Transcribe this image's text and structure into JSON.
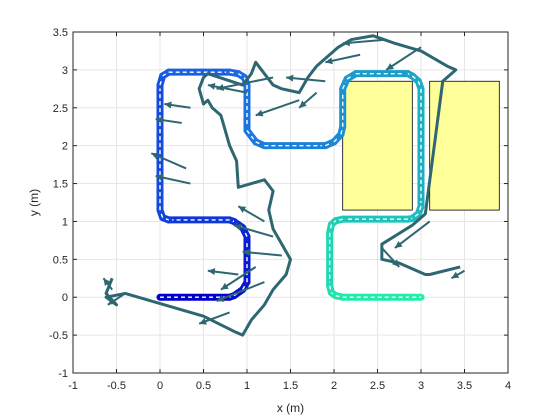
{
  "chart_data": {
    "type": "line",
    "xlabel": "x (m)",
    "ylabel": "y (m)",
    "xlim": [
      -1,
      4
    ],
    "ylim": [
      -1,
      3.5
    ],
    "x_ticks": [
      -1,
      -0.5,
      0,
      0.5,
      1,
      1.5,
      2,
      2.5,
      3,
      3.5,
      4
    ],
    "x_tick_labels": [
      "-1",
      "-0.5",
      "0",
      "0.5",
      "1",
      "1.5",
      "2",
      "2.5",
      "3",
      "3.5",
      "4"
    ],
    "y_ticks": [
      -1,
      -0.5,
      0,
      0.5,
      1,
      1.5,
      2,
      2.5,
      3,
      3.5
    ],
    "y_tick_labels": [
      "-1",
      "-0.5",
      "0",
      "0.5",
      "1",
      "1.5",
      "2",
      "2.5",
      "3",
      "3.5"
    ],
    "grid": true,
    "series": [
      {
        "style": "reference-path",
        "color_gradient": [
          "#0000cc",
          "#1a66e6",
          "#1aa6c6",
          "#22f0a8"
        ],
        "x": [
          0,
          0.8,
          0.85,
          0.95,
          1.0,
          1.0,
          0.95,
          0.85,
          0.8,
          0.1,
          0.03,
          0.0,
          0.0,
          0.03,
          0.1,
          0.8,
          0.9,
          0.97,
          1.0,
          1.0,
          1.1,
          1.2,
          1.9,
          2.0,
          2.08,
          2.1,
          2.1,
          2.15,
          2.25,
          2.85,
          2.9,
          2.97,
          3.0,
          3.0,
          2.97,
          2.9,
          2.85,
          2.1,
          2.02,
          1.97,
          1.95,
          1.95,
          1.97,
          2.02,
          2.1,
          2.9,
          3.0
        ],
        "y": [
          0,
          0,
          0.02,
          0.1,
          0.2,
          0.8,
          0.92,
          1.0,
          1.02,
          1.02,
          1.05,
          1.15,
          2.8,
          2.92,
          2.97,
          2.97,
          2.95,
          2.9,
          2.8,
          2.2,
          2.05,
          2.0,
          2.0,
          2.05,
          2.15,
          2.25,
          2.75,
          2.88,
          2.95,
          2.95,
          2.92,
          2.85,
          2.75,
          1.2,
          1.1,
          1.04,
          1.03,
          1.03,
          1.01,
          0.96,
          0.85,
          0.15,
          0.06,
          0.02,
          0.0,
          0.0,
          0.0
        ]
      },
      {
        "style": "arrows",
        "color": "#2e6672",
        "start": [
          [
            -0.55,
            0.1
          ],
          [
            -0.4,
            0.05
          ],
          [
            0.9,
            0.3
          ],
          [
            1.1,
            0.4
          ],
          [
            1.2,
            0.2
          ],
          [
            1.4,
            0.55
          ],
          [
            0.8,
            -0.2
          ],
          [
            1.3,
            0.8
          ],
          [
            0.35,
            1.5
          ],
          [
            0.3,
            1.7
          ],
          [
            0.25,
            2.3
          ],
          [
            0.35,
            2.5
          ],
          [
            1.0,
            2.7
          ],
          [
            1.3,
            2.9
          ],
          [
            1.6,
            2.6
          ],
          [
            1.9,
            2.85
          ],
          [
            2.3,
            3.2
          ],
          [
            2.6,
            3.4
          ],
          [
            3.0,
            3.3
          ],
          [
            3.1,
            1.0
          ],
          [
            3.5,
            0.35
          ],
          [
            2.55,
            0.65
          ],
          [
            1.8,
            2.7
          ],
          [
            1.2,
            1.0
          ]
        ],
        "end": [
          [
            -0.65,
            0.25
          ],
          [
            -0.6,
            -0.1
          ],
          [
            0.55,
            0.35
          ],
          [
            0.7,
            0.1
          ],
          [
            0.65,
            -0.05
          ],
          [
            0.95,
            0.6
          ],
          [
            0.45,
            -0.35
          ],
          [
            0.85,
            0.95
          ],
          [
            -0.05,
            1.6
          ],
          [
            -0.1,
            1.9
          ],
          [
            -0.05,
            2.35
          ],
          [
            0.05,
            2.55
          ],
          [
            0.55,
            2.8
          ],
          [
            0.65,
            2.75
          ],
          [
            1.1,
            2.4
          ],
          [
            1.45,
            2.9
          ],
          [
            1.9,
            3.1
          ],
          [
            2.1,
            3.35
          ],
          [
            2.6,
            3.0
          ],
          [
            2.7,
            0.65
          ],
          [
            3.35,
            0.25
          ],
          [
            2.75,
            0.4
          ],
          [
            1.6,
            2.5
          ],
          [
            0.9,
            1.2
          ]
        ]
      }
    ],
    "obstacles": [
      {
        "x": [
          2.1,
          2.9
        ],
        "y": [
          1.15,
          2.85
        ],
        "fill": "#ffff99"
      },
      {
        "x": [
          3.1,
          3.9
        ],
        "y": [
          1.15,
          2.85
        ],
        "fill": "#ffff99"
      }
    ],
    "trajectory": {
      "color": "#2e6672",
      "x": [
        -0.55,
        -0.62,
        -0.5,
        -0.62,
        -0.4,
        0.5,
        0.85,
        0.95,
        1.05,
        1.2,
        1.3,
        1.45,
        1.5,
        1.4,
        1.3,
        1.25,
        1.3,
        1.2,
        1.05,
        0.9,
        0.88,
        0.8,
        0.7,
        0.6,
        0.55,
        0.5,
        0.45,
        0.5,
        0.55,
        0.95,
        1.05,
        1.1,
        1.3,
        1.4,
        1.6,
        1.7,
        1.8,
        2.05,
        2.2,
        2.45,
        2.7,
        2.85,
        3.0,
        3.3,
        3.4,
        3.25,
        3.05,
        2.9,
        2.55,
        2.55,
        2.75,
        3.05,
        3.1,
        3.45
      ],
      "y": [
        0.25,
        0.05,
        -0.1,
        0.0,
        0.05,
        -0.25,
        -0.45,
        -0.5,
        -0.3,
        -0.1,
        0.1,
        0.3,
        0.5,
        0.7,
        0.9,
        1.15,
        1.4,
        1.55,
        1.5,
        1.45,
        1.8,
        2.0,
        2.4,
        2.5,
        2.6,
        2.55,
        2.75,
        2.9,
        2.95,
        2.8,
        2.95,
        3.1,
        2.8,
        2.75,
        2.7,
        2.9,
        3.05,
        3.3,
        3.4,
        3.45,
        3.35,
        3.3,
        3.25,
        3.05,
        3.0,
        2.85,
        1.1,
        0.95,
        0.7,
        0.5,
        0.45,
        0.3,
        0.3,
        0.4
      ]
    }
  }
}
